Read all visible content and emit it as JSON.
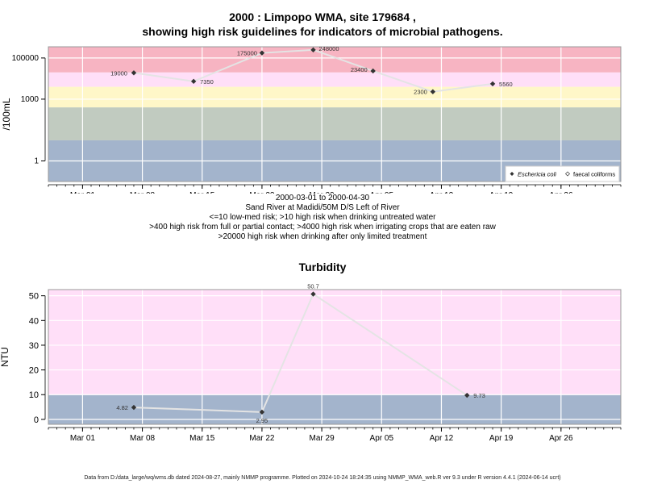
{
  "chart1": {
    "title_line1": "2000 : Limpopo WMA, site 179684 ,",
    "title_line2": "showing high risk guidelines for indicators of microbial pathogens.",
    "ylabel": "/100mL",
    "subtitle": [
      "2000-03-01 to 2000-04-30",
      "Sand River at Madidi/50M D/S Left of River",
      "<=10 low-med risk; >10 high risk when drinking untreated water",
      ">400 high risk from full or partial contact; >4000 high risk when irrigating crops that are eaten raw",
      ">20000 high risk when drinking after only limited treatment"
    ],
    "legend": [
      "Eschericia coli",
      "faecal coliforms"
    ]
  },
  "chart2": {
    "title": "Turbidity",
    "ylabel": "NTU"
  },
  "footer": "Data from D:/data_large/wq/wms.db dated 2024-08-27, mainly NMMP programme. Plotted on 2024-10-24 18:24:35 using NMMP_WMA_web.R ver 9.3 under R version 4.4.1 (2024-06-14 ucrt)",
  "chart_data": [
    {
      "type": "line",
      "title": "2000 : Limpopo WMA, site 179684 , showing high risk guidelines for indicators of microbial pathogens.",
      "ylabel": "/100mL",
      "yscale": "log",
      "xlim": [
        "2000-02-26",
        "2000-05-03"
      ],
      "ylim": [
        0.1,
        350000
      ],
      "x_ticks": [
        "Mar 01",
        "Mar 08",
        "Mar 15",
        "Mar 22",
        "Mar 29",
        "Apr 05",
        "Apr 12",
        "Apr 19",
        "Apr 26"
      ],
      "x_tick_dates": [
        "2000-03-01",
        "2000-03-08",
        "2000-03-15",
        "2000-03-22",
        "2000-03-29",
        "2000-04-05",
        "2000-04-12",
        "2000-04-19",
        "2000-04-26"
      ],
      "y_ticks": [
        1,
        1000,
        100000
      ],
      "y_tick_labels": [
        "1",
        "1000",
        "100000"
      ],
      "bands": [
        {
          "from": 0.1,
          "to": 10,
          "color": "#a3b4cc"
        },
        {
          "from": 10,
          "to": 400,
          "color": "#c1cbc0"
        },
        {
          "from": 400,
          "to": 4000,
          "color": "#fff7c8"
        },
        {
          "from": 4000,
          "to": 20000,
          "color": "#ffdff8"
        },
        {
          "from": 20000,
          "to": 350000,
          "color": "#f7b4c2"
        }
      ],
      "series": [
        {
          "name": "Eschericia coli",
          "x": [
            "2000-03-07",
            "2000-03-14",
            "2000-03-22",
            "2000-03-28",
            "2000-04-04",
            "2000-04-11",
            "2000-04-18"
          ],
          "values": [
            19000,
            7350,
            175000,
            248000,
            23400,
            2300,
            5560
          ],
          "labels": [
            "19000",
            "7350",
            "175000",
            "248000",
            "23400",
            "2300",
            "5560"
          ]
        }
      ],
      "legend_position": "bottom-right",
      "grid": true
    },
    {
      "type": "line",
      "title": "Turbidity",
      "ylabel": "NTU",
      "xlim": [
        "2000-02-26",
        "2000-05-03"
      ],
      "ylim": [
        -2,
        52.5
      ],
      "x_ticks": [
        "Mar 01",
        "Mar 08",
        "Mar 15",
        "Mar 22",
        "Mar 29",
        "Apr 05",
        "Apr 12",
        "Apr 19",
        "Apr 26"
      ],
      "x_tick_dates": [
        "2000-03-01",
        "2000-03-08",
        "2000-03-15",
        "2000-03-22",
        "2000-03-29",
        "2000-04-05",
        "2000-04-12",
        "2000-04-19",
        "2000-04-26"
      ],
      "y_ticks": [
        0,
        10,
        20,
        30,
        40,
        50
      ],
      "bands": [
        {
          "from": -2,
          "to": 10,
          "color": "#a3b4cc"
        },
        {
          "from": 10,
          "to": 52.5,
          "color": "#ffdff8"
        }
      ],
      "series": [
        {
          "x": [
            "2000-03-07",
            "2000-03-22",
            "2000-03-28",
            "2000-04-15"
          ],
          "values": [
            4.82,
            2.95,
            50.7,
            9.73
          ],
          "labels": [
            "4.82",
            "2.95",
            "50.7",
            "9.73"
          ]
        }
      ],
      "grid": true
    }
  ]
}
